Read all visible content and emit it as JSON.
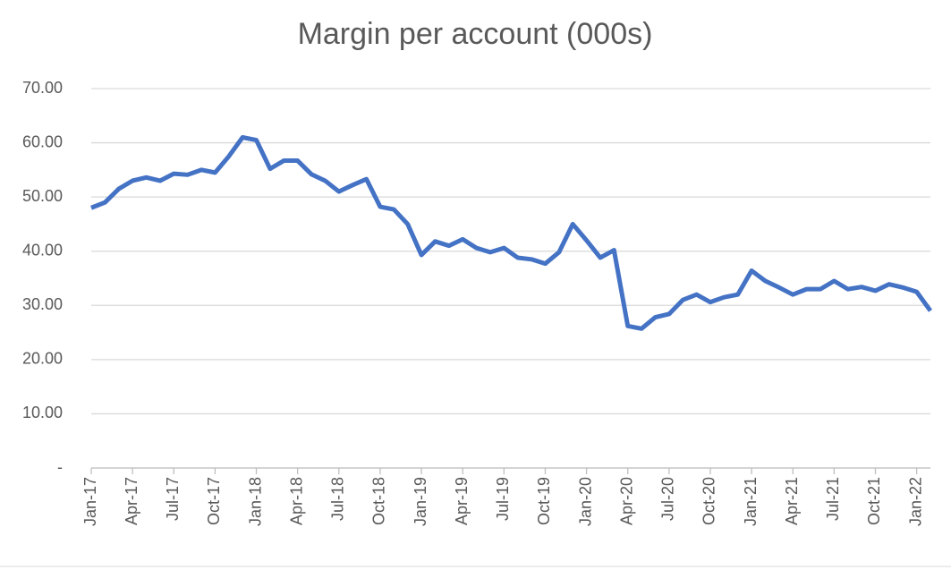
{
  "chart_data": {
    "type": "line",
    "title": "Margin per account (000s)",
    "categories": [
      "Jan-17",
      null,
      null,
      "Apr-17",
      null,
      null,
      "Jul-17",
      null,
      null,
      "Oct-17",
      null,
      null,
      "Jan-18",
      null,
      null,
      "Apr-18",
      null,
      null,
      "Jul-18",
      null,
      null,
      "Oct-18",
      null,
      null,
      "Jan-19",
      null,
      null,
      "Apr-19",
      null,
      null,
      "Jul-19",
      null,
      null,
      "Oct-19",
      null,
      null,
      "Jan-20",
      null,
      null,
      "Apr-20",
      null,
      null,
      "Jul-20",
      null,
      null,
      "Oct-20",
      null,
      null,
      "Jan-21",
      null,
      null,
      "Apr-21",
      null,
      null,
      "Jul-21",
      null,
      null,
      "Oct-21",
      null,
      null,
      "Jan-22",
      null
    ],
    "series": [
      {
        "name": "Margin per account",
        "color": "#4472c4",
        "values": [
          48,
          49,
          51.5,
          53,
          53.6,
          53,
          54.3,
          54.1,
          55,
          54.5,
          57.5,
          61,
          60.5,
          55.2,
          56.7,
          56.7,
          54.2,
          53,
          51,
          52.2,
          53.3,
          48.2,
          47.7,
          45,
          39.3,
          41.8,
          41,
          42.2,
          40.6,
          39.8,
          40.6,
          38.8,
          38.5,
          37.7,
          39.8,
          45,
          42,
          38.8,
          40.2,
          26.2,
          25.7,
          27.8,
          28.4,
          31,
          32,
          30.6,
          31.5,
          32,
          36.4,
          34.5,
          33.3,
          32,
          33,
          33,
          34.5,
          33,
          33.4,
          32.7,
          33.9,
          33.3,
          32.5,
          29
        ]
      }
    ],
    "ylim": [
      0,
      70
    ],
    "yticks": [
      {
        "value": 0,
        "label": "-"
      },
      {
        "value": 10,
        "label": "10.00"
      },
      {
        "value": 20,
        "label": "20.00"
      },
      {
        "value": 30,
        "label": "30.00"
      },
      {
        "value": 40,
        "label": "40.00"
      },
      {
        "value": 50,
        "label": "50.00"
      },
      {
        "value": 60,
        "label": "60.00"
      },
      {
        "value": 70,
        "label": "70.00"
      }
    ],
    "grid": true
  }
}
